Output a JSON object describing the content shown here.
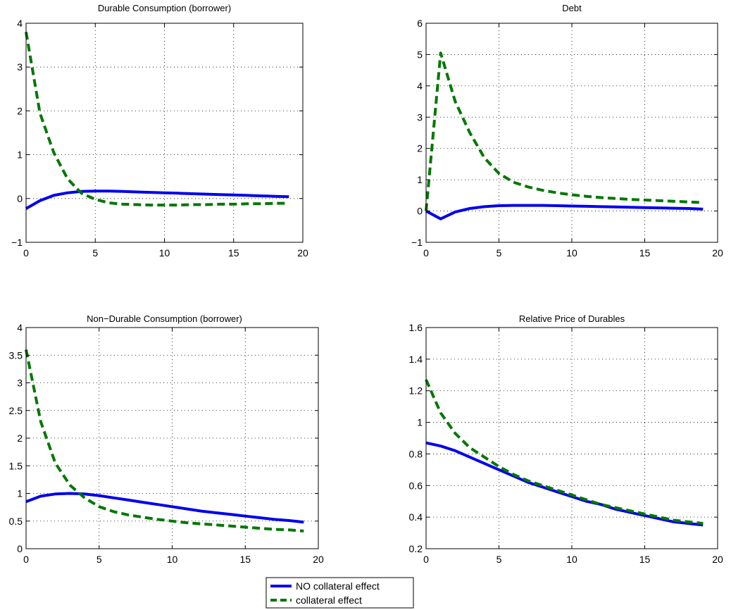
{
  "legend": {
    "entries": [
      {
        "label": "NO collateral effect",
        "color": "#0000ee",
        "style": "solid"
      },
      {
        "label": "collateral effect",
        "color": "#007700",
        "style": "dashed"
      }
    ]
  },
  "chart_data": [
    {
      "type": "line",
      "title": "Durable Consumption (borrower)",
      "xlim": [
        0,
        20
      ],
      "ylim": [
        -1,
        4
      ],
      "xticks": [
        0,
        5,
        10,
        15,
        20
      ],
      "yticks": [
        -1,
        0,
        1,
        2,
        3,
        4
      ],
      "ytick_labels": [
        "−1",
        "0",
        "1",
        "2",
        "3",
        "4"
      ],
      "grid": true,
      "x": [
        0,
        1,
        2,
        3,
        4,
        5,
        6,
        7,
        8,
        9,
        10,
        11,
        12,
        13,
        14,
        15,
        16,
        17,
        18,
        19
      ],
      "series": [
        {
          "name": "NO collateral effect",
          "color": "#0000ee",
          "values": [
            -0.23,
            -0.05,
            0.07,
            0.13,
            0.16,
            0.17,
            0.17,
            0.16,
            0.15,
            0.14,
            0.13,
            0.12,
            0.11,
            0.1,
            0.09,
            0.08,
            0.07,
            0.06,
            0.05,
            0.04
          ]
        },
        {
          "name": "collateral effect",
          "color": "#007700",
          "values": [
            3.8,
            1.95,
            1.05,
            0.45,
            0.12,
            -0.02,
            -0.1,
            -0.13,
            -0.14,
            -0.15,
            -0.15,
            -0.15,
            -0.14,
            -0.14,
            -0.13,
            -0.13,
            -0.12,
            -0.12,
            -0.11,
            -0.11
          ]
        }
      ]
    },
    {
      "type": "line",
      "title": "Debt",
      "xlim": [
        0,
        20
      ],
      "ylim": [
        -1,
        6
      ],
      "xticks": [
        0,
        5,
        10,
        15,
        20
      ],
      "yticks": [
        -1,
        0,
        1,
        2,
        3,
        4,
        5,
        6
      ],
      "ytick_labels": [
        "−1",
        "0",
        "1",
        "2",
        "3",
        "4",
        "5",
        "6"
      ],
      "grid": true,
      "x": [
        0,
        1,
        2,
        3,
        4,
        5,
        6,
        7,
        8,
        9,
        10,
        11,
        12,
        13,
        14,
        15,
        16,
        17,
        18,
        19
      ],
      "series": [
        {
          "name": "NO collateral effect",
          "color": "#0000ee",
          "values": [
            0,
            -0.25,
            -0.03,
            0.08,
            0.14,
            0.17,
            0.18,
            0.18,
            0.18,
            0.17,
            0.16,
            0.15,
            0.14,
            0.13,
            0.12,
            0.11,
            0.1,
            0.09,
            0.08,
            0.06
          ]
        },
        {
          "name": "collateral effect",
          "color": "#007700",
          "values": [
            0,
            5.05,
            3.5,
            2.5,
            1.7,
            1.2,
            0.92,
            0.77,
            0.66,
            0.58,
            0.52,
            0.47,
            0.43,
            0.4,
            0.37,
            0.35,
            0.33,
            0.31,
            0.29,
            0.27
          ]
        }
      ]
    },
    {
      "type": "line",
      "title": "Non−Durable Consumption (borrower)",
      "xlim": [
        0,
        20
      ],
      "ylim": [
        0,
        4
      ],
      "xticks": [
        0,
        5,
        10,
        15,
        20
      ],
      "yticks": [
        0,
        0.5,
        1,
        1.5,
        2,
        2.5,
        3,
        3.5,
        4
      ],
      "ytick_labels": [
        "0",
        "0.5",
        "1",
        "1.5",
        "2",
        "2.5",
        "3",
        "3.5",
        "4"
      ],
      "grid": true,
      "x": [
        0,
        1,
        2,
        3,
        4,
        5,
        6,
        7,
        8,
        9,
        10,
        11,
        12,
        13,
        14,
        15,
        16,
        17,
        18,
        19
      ],
      "series": [
        {
          "name": "NO collateral effect",
          "color": "#0000ee",
          "values": [
            0.85,
            0.95,
            0.99,
            1.0,
            0.99,
            0.96,
            0.92,
            0.88,
            0.84,
            0.8,
            0.76,
            0.72,
            0.68,
            0.65,
            0.62,
            0.59,
            0.56,
            0.53,
            0.51,
            0.48
          ]
        },
        {
          "name": "collateral effect",
          "color": "#007700",
          "values": [
            3.6,
            2.3,
            1.55,
            1.15,
            0.92,
            0.76,
            0.67,
            0.61,
            0.57,
            0.53,
            0.5,
            0.47,
            0.45,
            0.43,
            0.41,
            0.39,
            0.37,
            0.35,
            0.34,
            0.32
          ]
        }
      ]
    },
    {
      "type": "line",
      "title": "Relative Price of Durables",
      "xlim": [
        0,
        20
      ],
      "ylim": [
        0.2,
        1.6
      ],
      "xticks": [
        0,
        5,
        10,
        15,
        20
      ],
      "yticks": [
        0.2,
        0.4,
        0.6,
        0.8,
        1,
        1.2,
        1.4,
        1.6
      ],
      "ytick_labels": [
        "0.2",
        "0.4",
        "0.6",
        "0.8",
        "1",
        "1.2",
        "1.4",
        "1.6"
      ],
      "grid": true,
      "x": [
        0,
        1,
        2,
        3,
        4,
        5,
        6,
        7,
        8,
        9,
        10,
        11,
        12,
        13,
        14,
        15,
        16,
        17,
        18,
        19
      ],
      "series": [
        {
          "name": "NO collateral effect",
          "color": "#0000ee",
          "values": [
            0.87,
            0.85,
            0.82,
            0.78,
            0.74,
            0.7,
            0.66,
            0.62,
            0.59,
            0.56,
            0.53,
            0.5,
            0.48,
            0.45,
            0.43,
            0.41,
            0.39,
            0.37,
            0.36,
            0.35
          ]
        },
        {
          "name": "collateral effect",
          "color": "#007700",
          "values": [
            1.27,
            1.06,
            0.93,
            0.84,
            0.78,
            0.72,
            0.67,
            0.63,
            0.6,
            0.57,
            0.54,
            0.51,
            0.48,
            0.46,
            0.44,
            0.42,
            0.4,
            0.38,
            0.37,
            0.36
          ]
        }
      ]
    }
  ]
}
